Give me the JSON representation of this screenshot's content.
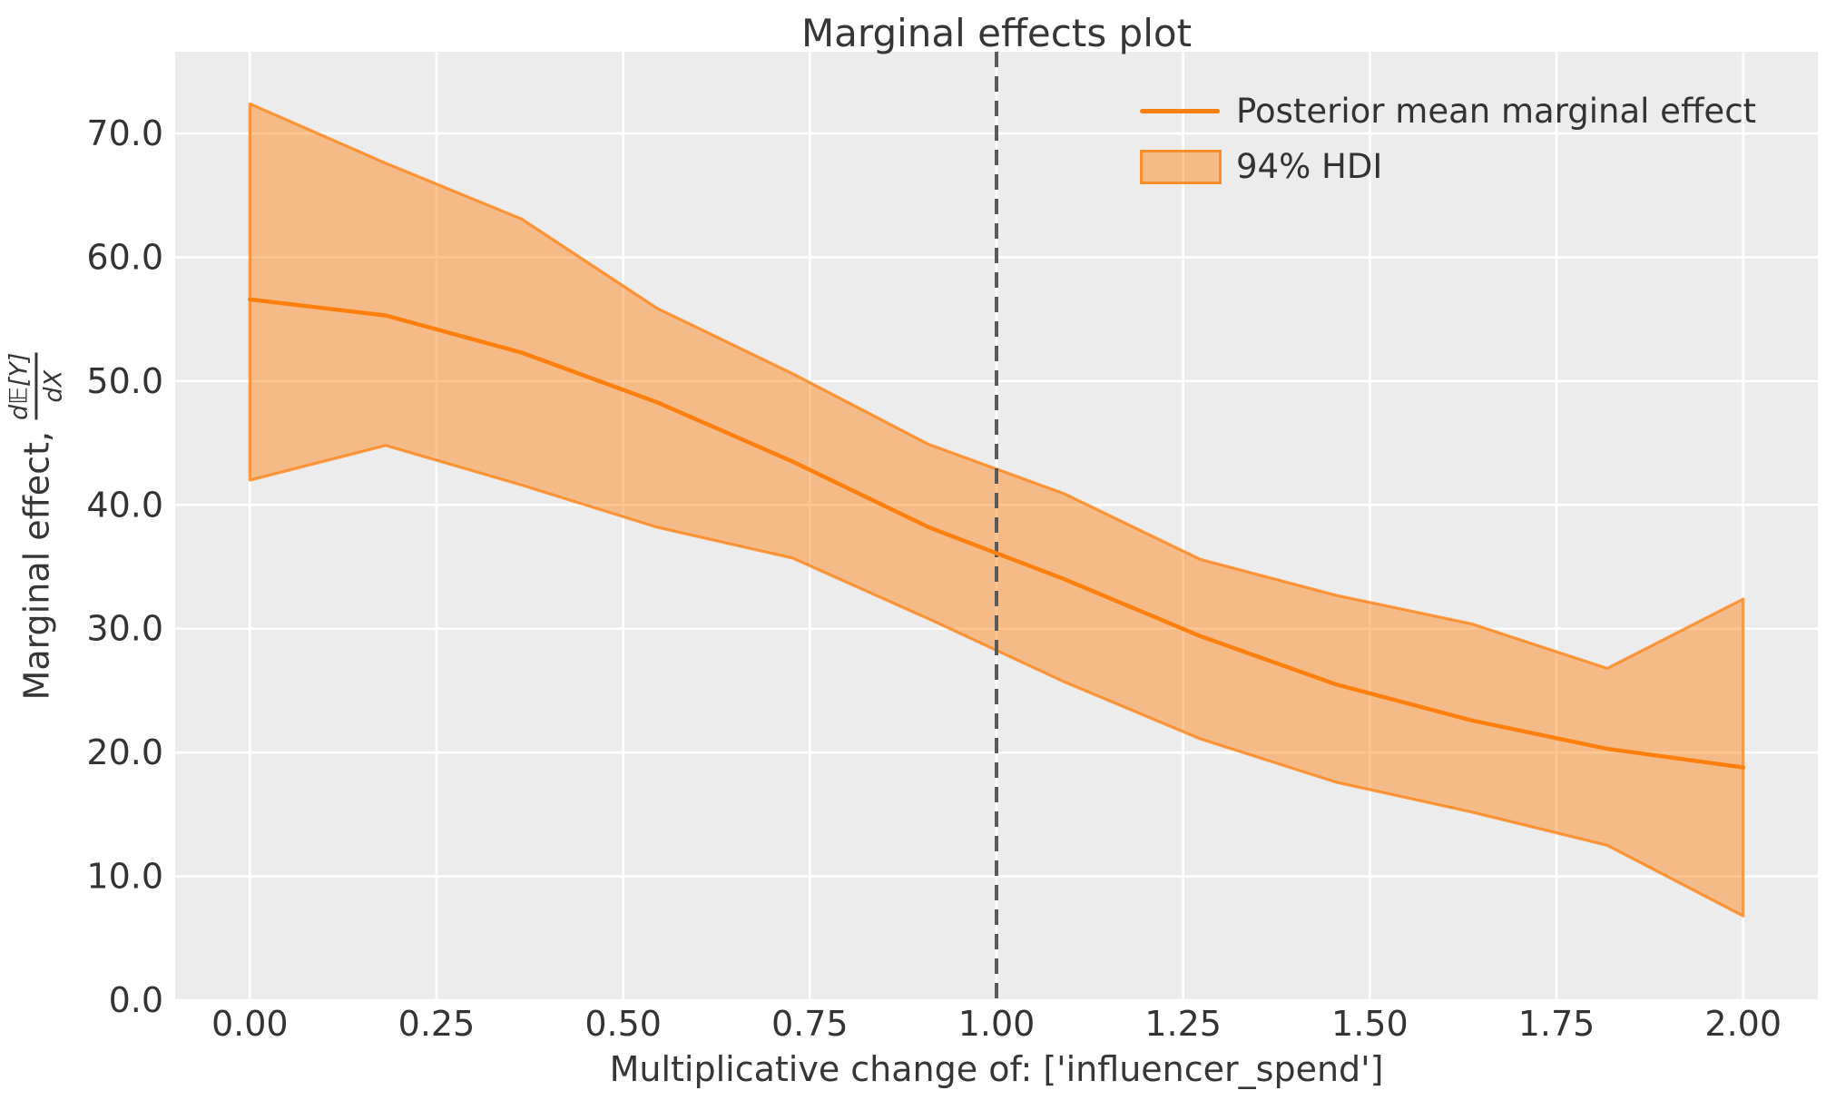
{
  "title": "Marginal effects plot",
  "legend": {
    "position": "upper right",
    "items": [
      {
        "label": "Posterior mean marginal effect",
        "swatch": "line"
      },
      {
        "label": "94% HDI",
        "swatch": "patch"
      }
    ]
  },
  "chart_data": {
    "type": "line",
    "title": "Marginal effects plot",
    "xlabel": "Multiplicative change of: ['influencer_spend']",
    "ylabel": "Marginal effect, d𝔼[Y]/dX",
    "ylabel_parts": {
      "prefix": "Marginal effect,",
      "frac_num": "d𝔼[Y]",
      "frac_den": "dX"
    },
    "x": [
      0.0,
      0.182,
      0.364,
      0.545,
      0.727,
      0.909,
      1.091,
      1.273,
      1.455,
      1.636,
      1.818,
      2.0
    ],
    "series": [
      {
        "name": "Posterior mean marginal effect",
        "role": "mean",
        "values": [
          56.6,
          55.3,
          52.3,
          48.3,
          43.5,
          38.2,
          34.0,
          29.4,
          25.5,
          22.6,
          20.3,
          18.8
        ]
      },
      {
        "name": "94% HDI upper bound",
        "role": "hdi_upper",
        "values": [
          72.4,
          67.6,
          63.1,
          55.9,
          50.6,
          44.9,
          40.9,
          35.6,
          32.7,
          30.4,
          26.8,
          32.4
        ]
      },
      {
        "name": "94% HDI lower bound",
        "role": "hdi_lower",
        "values": [
          42.0,
          44.8,
          41.6,
          38.2,
          35.7,
          30.8,
          25.7,
          21.1,
          17.6,
          15.2,
          12.5,
          6.8
        ]
      }
    ],
    "reference_line_x": 1.0,
    "xlim": [
      -0.1,
      2.1
    ],
    "ylim": [
      0.0,
      76.6
    ],
    "x_ticks": {
      "values": [
        0.0,
        0.25,
        0.5,
        0.75,
        1.0,
        1.25,
        1.5,
        1.75,
        2.0
      ],
      "labels": [
        "0.00",
        "0.25",
        "0.50",
        "0.75",
        "1.00",
        "1.25",
        "1.50",
        "1.75",
        "2.00"
      ]
    },
    "y_ticks": {
      "values": [
        0,
        10,
        20,
        30,
        40,
        50,
        60,
        70
      ],
      "labels": [
        "0.0",
        "10.0",
        "20.0",
        "30.0",
        "40.0",
        "50.0",
        "60.0",
        "70.0"
      ]
    },
    "grid": true,
    "legend_position": "upper right",
    "colors": {
      "figure_bg": "#FFFFFF",
      "plot_bg": "#ECECEC",
      "grid": "#FFFFFF",
      "mean_line": "#FF7F0E",
      "hdi_fill": "rgba(255,127,14,0.45)",
      "hdi_edge": "rgba(255,127,14,0.75)",
      "reference_line": "#5A5A5A",
      "text": "#333333"
    }
  }
}
